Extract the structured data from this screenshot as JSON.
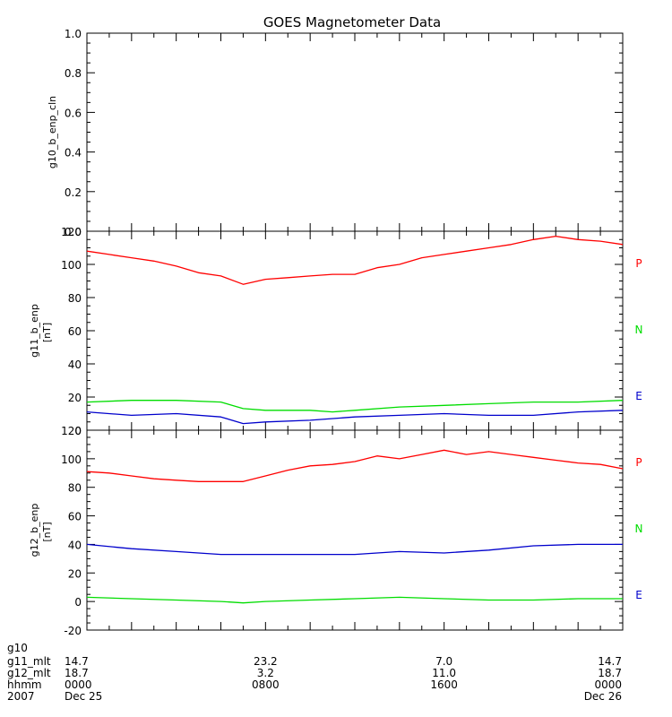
{
  "chart_data": [
    {
      "type": "line",
      "ylabel": "g10_b_enp_cln",
      "unit": "",
      "ylim": [
        0,
        1
      ],
      "yticks": [
        "0.0",
        "0.2",
        "0.4",
        "0.6",
        "0.8",
        "1.0"
      ],
      "series": []
    },
    {
      "type": "line",
      "ylabel": "g11_b_enp",
      "unit": "[nT]",
      "ylim": [
        0,
        120
      ],
      "yticks": [
        "0",
        "20",
        "40",
        "60",
        "80",
        "100",
        "120"
      ],
      "series": [
        {
          "name": "P",
          "color": "#ff0000",
          "x": [
            0,
            1,
            2,
            3,
            4,
            5,
            6,
            7,
            8,
            9,
            10,
            11,
            12,
            13,
            14,
            15,
            16,
            17,
            18,
            19,
            20,
            21,
            22,
            23,
            24
          ],
          "values": [
            108,
            106,
            104,
            102,
            99,
            95,
            93,
            88,
            91,
            92,
            93,
            94,
            94,
            98,
            100,
            104,
            106,
            108,
            110,
            112,
            115,
            117,
            115,
            114,
            112
          ]
        },
        {
          "name": "N",
          "color": "#00dd00",
          "x": [
            0,
            2,
            4,
            6,
            7,
            8,
            10,
            11,
            12,
            14,
            16,
            18,
            20,
            22,
            24
          ],
          "values": [
            17,
            18,
            18,
            17,
            13,
            12,
            12,
            11,
            12,
            14,
            15,
            16,
            17,
            17,
            18
          ]
        },
        {
          "name": "E",
          "color": "#0000cc",
          "x": [
            0,
            2,
            4,
            6,
            7,
            8,
            10,
            12,
            14,
            16,
            18,
            20,
            22,
            24
          ],
          "values": [
            11,
            9,
            10,
            8,
            4,
            5,
            6,
            8,
            9,
            10,
            9,
            9,
            11,
            12
          ]
        }
      ]
    },
    {
      "type": "line",
      "ylabel": "g12_b_enp",
      "unit": "[nT]",
      "ylim": [
        -20,
        120
      ],
      "yticks": [
        "-20",
        "0",
        "20",
        "40",
        "60",
        "80",
        "100",
        "120"
      ],
      "series": [
        {
          "name": "P",
          "color": "#ff0000",
          "x": [
            0,
            1,
            2,
            3,
            4,
            5,
            6,
            7,
            8,
            9,
            10,
            11,
            12,
            13,
            14,
            15,
            16,
            17,
            18,
            19,
            20,
            21,
            22,
            23,
            24
          ],
          "values": [
            91,
            90,
            88,
            86,
            85,
            84,
            84,
            84,
            88,
            92,
            95,
            96,
            98,
            102,
            100,
            103,
            106,
            103,
            105,
            103,
            101,
            99,
            97,
            96,
            93
          ]
        },
        {
          "name": "N",
          "color": "#00dd00",
          "x": [
            0,
            2,
            4,
            6,
            7,
            8,
            10,
            12,
            14,
            16,
            18,
            20,
            22,
            24
          ],
          "values": [
            3,
            2,
            1,
            0,
            -1,
            0,
            1,
            2,
            3,
            2,
            1,
            1,
            2,
            2
          ]
        },
        {
          "name": "E",
          "color": "#0000cc",
          "x": [
            0,
            2,
            4,
            6,
            8,
            10,
            12,
            14,
            16,
            18,
            20,
            22,
            24
          ],
          "values": [
            40,
            37,
            35,
            33,
            33,
            33,
            33,
            35,
            34,
            36,
            39,
            40,
            40
          ]
        }
      ]
    }
  ],
  "title": "GOES Magnetometer Data",
  "x_axis": {
    "xlim": [
      0,
      24
    ],
    "rows": [
      {
        "label": "g10",
        "values": [
          "",
          "",
          "",
          ""
        ]
      },
      {
        "label": "g11_mlt",
        "values": [
          "14.7",
          "23.2",
          "7.0",
          "14.7"
        ]
      },
      {
        "label": "g12_mlt",
        "values": [
          "18.7",
          "3.2",
          "11.0",
          "18.7"
        ]
      },
      {
        "label": "hhmm",
        "values": [
          "0000",
          "0800",
          "1600",
          "0000"
        ]
      },
      {
        "label": "2007",
        "values": [
          "Dec 25",
          "",
          "",
          "Dec 26"
        ]
      }
    ]
  }
}
